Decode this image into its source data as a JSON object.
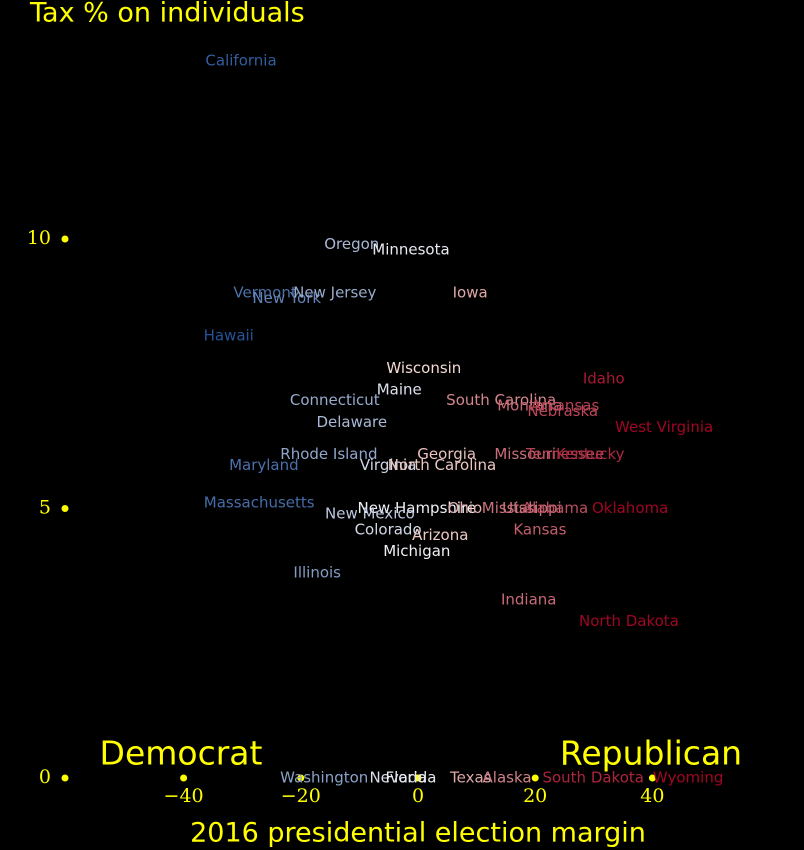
{
  "chart_data": {
    "type": "scatter",
    "title": "Tax % on individuals",
    "x_label": "2016 presidential election margin",
    "annotations": [
      "Democrat",
      "Republican"
    ],
    "xlim": [
      -60,
      60
    ],
    "ylim": [
      0,
      14
    ],
    "xticks": [
      {
        "value": -40,
        "label": "−40"
      },
      {
        "value": -20,
        "label": "−20"
      },
      0,
      20,
      40
    ],
    "yticks": [
      0,
      5,
      10
    ],
    "tick_color": "#ffff00",
    "labels": [
      "California",
      "Oregon",
      "Minnesota",
      "Vermont",
      "New York",
      "New Jersey",
      "Iowa",
      "Hawaii",
      "Wisconsin",
      "Maine",
      "Idaho",
      "Connecticut",
      "South Carolina",
      "Montana",
      "Arkansas",
      "Nebraska",
      "West Virginia",
      "Delaware",
      "Rhode Island",
      "Georgia",
      "Missouri",
      "Tennessee",
      "Kentucky",
      "Maryland",
      "Virginia",
      "North Carolina",
      "Massachusetts",
      "New Hampshire",
      "Ohio",
      "Mississippi",
      "Utah",
      "Alabama",
      "Oklahoma",
      "New Mexico",
      "Kansas",
      "Colorado",
      "Arizona",
      "Michigan",
      "Illinois",
      "Indiana",
      "North Dakota",
      "Washington",
      "Nevada",
      "Florida",
      "Texas",
      "Alaska",
      "South Dakota",
      "Wyoming"
    ],
    "x": [
      -30.2,
      -11.3,
      -1.2,
      -26.1,
      -22.4,
      -14.2,
      8.9,
      -32.3,
      1.0,
      -3.2,
      31.7,
      -14.2,
      14.2,
      19.1,
      25.1,
      24.7,
      42.0,
      -11.3,
      -15.2,
      4.9,
      18.3,
      25.1,
      29.4,
      -26.3,
      -5.1,
      4.1,
      -27.1,
      -0.2,
      8.0,
      17.7,
      17.4,
      23.4,
      36.2,
      -8.2,
      20.8,
      -5.1,
      3.8,
      -0.2,
      -17.2,
      18.9,
      36.0,
      -16.0,
      -3.4,
      -1.2,
      9.0,
      15.2,
      29.9,
      46.1
    ],
    "y": [
      13.3,
      9.9,
      9.8,
      9.0,
      8.9,
      9.0,
      9.0,
      8.2,
      7.6,
      7.2,
      7.4,
      7.0,
      7.0,
      6.9,
      6.9,
      6.8,
      6.5,
      6.6,
      6.0,
      6.0,
      6.0,
      6.0,
      6.0,
      5.8,
      5.8,
      5.8,
      5.1,
      5.0,
      5.0,
      5.0,
      5.0,
      5.0,
      5.0,
      4.9,
      4.6,
      4.6,
      4.5,
      4.2,
      3.8,
      3.3,
      2.9,
      0,
      0,
      0,
      0,
      0,
      0,
      0
    ]
  }
}
